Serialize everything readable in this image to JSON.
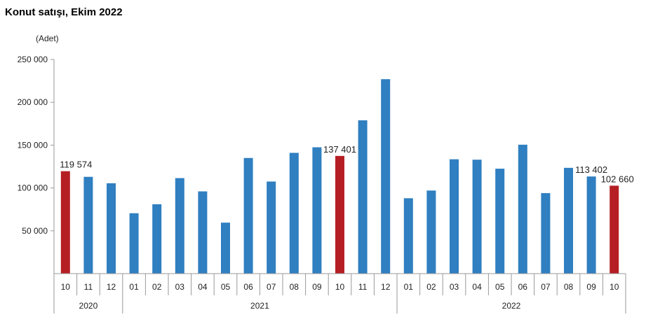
{
  "header": {
    "title": "Konut satışı, Ekim 2022",
    "unit": "(Adet)"
  },
  "chart_data": {
    "type": "bar",
    "categories": [
      "10",
      "11",
      "12",
      "01",
      "02",
      "03",
      "04",
      "05",
      "06",
      "07",
      "08",
      "09",
      "10",
      "11",
      "12",
      "01",
      "02",
      "03",
      "04",
      "05",
      "06",
      "07",
      "08",
      "09",
      "10"
    ],
    "years": [
      {
        "label": "2020",
        "from": 0,
        "to": 2
      },
      {
        "label": "2021",
        "from": 3,
        "to": 14
      },
      {
        "label": "2022",
        "from": 15,
        "to": 24
      }
    ],
    "values": [
      119574,
      113000,
      105500,
      70500,
      81000,
      111500,
      96000,
      59500,
      135000,
      107500,
      141000,
      147500,
      137401,
      179000,
      227000,
      88000,
      97000,
      133500,
      133000,
      122500,
      150500,
      94000,
      123500,
      113402,
      102660
    ],
    "highlight": [
      0,
      12,
      24
    ],
    "data_labels": [
      {
        "index": 0,
        "text": "119 574"
      },
      {
        "index": 12,
        "text": "137 401"
      },
      {
        "index": 23,
        "text": "113 402"
      },
      {
        "index": 24,
        "text": "102 660"
      }
    ],
    "yticks": [
      {
        "value": 50000,
        "label": "50 000"
      },
      {
        "value": 100000,
        "label": "100 000"
      },
      {
        "value": 150000,
        "label": "150 000"
      },
      {
        "value": 200000,
        "label": "200 000"
      },
      {
        "value": 250000,
        "label": "250 000"
      }
    ],
    "ylim": [
      0,
      250000
    ],
    "colors": {
      "bar": "#2f7fc1",
      "highlight": "#b51f24",
      "axis": "#999999"
    },
    "grid": false,
    "legend": "none"
  }
}
